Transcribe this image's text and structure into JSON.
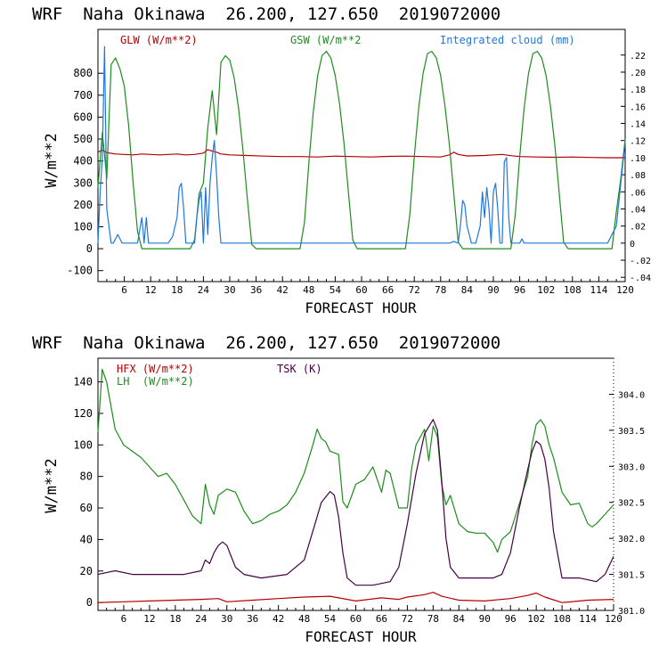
{
  "chart_data": [
    {
      "type": "line",
      "title": "WRF  Naha Okinawa  26.200, 127.650  2019072000",
      "xlabel": "FORECAST HOUR",
      "ylabel": "W/m**2",
      "xlim": [
        0,
        120
      ],
      "ylim": [
        -150,
        1000
      ],
      "y2lim": [
        -0.045,
        0.25
      ],
      "x_ticks": [
        6,
        12,
        18,
        24,
        30,
        36,
        42,
        48,
        54,
        60,
        66,
        72,
        78,
        84,
        90,
        96,
        102,
        108,
        114,
        120
      ],
      "y_ticks": [
        -100,
        0,
        100,
        200,
        300,
        400,
        500,
        600,
        700,
        800
      ],
      "y2_ticks": [
        -0.04,
        -0.02,
        0,
        0.02,
        0.04,
        0.06,
        0.08,
        0.1,
        0.12,
        0.14,
        0.16,
        0.18,
        0.2,
        0.22
      ],
      "y2_tick_labels": [
        "-.04",
        "-.02",
        "0",
        ".02",
        ".04",
        ".06",
        ".08",
        ".10",
        ".12",
        ".14",
        ".16",
        ".18",
        ".20",
        ".22"
      ],
      "grid": false,
      "series": [
        {
          "name": "GLW (W/m**2)",
          "axis": "left",
          "color": "#b40000",
          "x": [
            0,
            1,
            2,
            4,
            6,
            8,
            10,
            12,
            14,
            16,
            18,
            20,
            22,
            24,
            25,
            26,
            27,
            28,
            30,
            34,
            38,
            42,
            46,
            50,
            54,
            58,
            62,
            66,
            70,
            74,
            78,
            80,
            81,
            82,
            84,
            88,
            90,
            92,
            94,
            96,
            100,
            104,
            108,
            112,
            116,
            120
          ],
          "y": [
            440,
            450,
            438,
            432,
            430,
            428,
            432,
            430,
            428,
            430,
            432,
            428,
            430,
            436,
            452,
            445,
            440,
            432,
            428,
            425,
            422,
            420,
            420,
            418,
            422,
            420,
            418,
            421,
            422,
            420,
            418,
            428,
            440,
            430,
            423,
            425,
            428,
            430,
            424,
            420,
            418,
            417,
            418,
            416,
            415,
            415
          ]
        },
        {
          "name": "GSW (W/m**2",
          "axis": "left",
          "color": "#1e8c1e",
          "x": [
            0,
            1,
            2,
            3,
            4,
            5,
            6,
            7,
            8,
            9,
            10,
            11,
            12,
            13,
            14,
            15,
            16,
            17,
            18,
            19,
            20,
            21,
            22,
            23,
            24,
            25,
            26,
            27,
            28,
            29,
            30,
            31,
            32,
            33,
            34,
            35,
            36,
            37,
            38,
            39,
            40,
            41,
            42,
            43,
            44,
            45,
            46,
            47,
            48,
            49,
            50,
            51,
            52,
            53,
            54,
            55,
            56,
            57,
            58,
            59,
            60,
            61,
            62,
            63,
            64,
            65,
            66,
            67,
            68,
            69,
            70,
            71,
            72,
            73,
            74,
            75,
            76,
            77,
            78,
            79,
            80,
            81,
            82,
            83,
            84,
            85,
            86,
            87,
            88,
            89,
            90,
            91,
            92,
            93,
            94,
            95,
            96,
            97,
            98,
            99,
            100,
            101,
            102,
            103,
            104,
            105,
            106,
            107,
            108,
            109,
            110,
            111,
            112,
            113,
            114,
            115,
            116,
            117,
            118,
            119,
            120
          ],
          "y": [
            280,
            530,
            320,
            840,
            870,
            820,
            740,
            560,
            300,
            80,
            0,
            0,
            0,
            0,
            0,
            0,
            0,
            0,
            0,
            0,
            0,
            0,
            40,
            250,
            300,
            550,
            720,
            520,
            850,
            880,
            860,
            780,
            640,
            450,
            230,
            20,
            0,
            0,
            0,
            0,
            0,
            0,
            0,
            0,
            0,
            0,
            0,
            120,
            390,
            620,
            790,
            880,
            900,
            870,
            790,
            660,
            480,
            260,
            40,
            0,
            0,
            0,
            0,
            0,
            0,
            0,
            0,
            0,
            0,
            0,
            0,
            160,
            420,
            640,
            800,
            890,
            900,
            870,
            790,
            650,
            470,
            250,
            30,
            0,
            0,
            0,
            0,
            0,
            0,
            0,
            0,
            0,
            0,
            0,
            0,
            160,
            420,
            640,
            800,
            890,
            900,
            870,
            790,
            650,
            470,
            250,
            30,
            0,
            0,
            0,
            0,
            0,
            0,
            0,
            0,
            0,
            0,
            0,
            170,
            320,
            500
          ]
        },
        {
          "name": "Integrated cloud (mm)",
          "axis": "right",
          "color": "#1e78dc",
          "x": [
            0,
            0.5,
            1,
            1.5,
            2,
            2.5,
            3,
            3.5,
            4,
            4.5,
            5,
            5.5,
            6,
            6.5,
            7,
            9,
            10,
            10.5,
            11,
            11.5,
            12,
            13,
            16,
            17,
            18,
            18.5,
            19,
            19.5,
            20,
            21,
            22,
            22.5,
            23,
            23.5,
            24,
            24.5,
            25,
            25.5,
            26,
            26.5,
            27,
            27.5,
            28,
            30,
            60,
            80,
            81,
            82,
            82.5,
            83,
            83.5,
            84,
            84.5,
            85,
            86,
            87,
            87.5,
            88,
            88.5,
            89,
            89.5,
            90,
            90.5,
            91,
            91.5,
            92,
            92.5,
            93,
            93.5,
            94,
            95,
            96,
            96.5,
            97,
            98,
            110,
            116,
            118,
            119,
            120
          ],
          "y": [
            0.0,
            0.06,
            0.1,
            0.23,
            0.04,
            0.02,
            0.0,
            0.0,
            0.005,
            0.01,
            0.005,
            0.0,
            0.0,
            0.0,
            0.0,
            0.0,
            0.03,
            0.0,
            0.03,
            0.0,
            0.0,
            0.0,
            0.0,
            0.008,
            0.03,
            0.065,
            0.07,
            0.04,
            0.0,
            0.0,
            0.0,
            0.03,
            0.05,
            0.06,
            0.0,
            0.065,
            0.01,
            0.07,
            0.1,
            0.12,
            0.08,
            0.03,
            0.0,
            0.0,
            0.0,
            0.0,
            0.002,
            0.0,
            0.02,
            0.05,
            0.045,
            0.02,
            0.01,
            0.0,
            0.0,
            0.02,
            0.06,
            0.03,
            0.065,
            0.04,
            0.0,
            0.06,
            0.07,
            0.04,
            0.0,
            0.0,
            0.095,
            0.1,
            0.03,
            0.0,
            0.0,
            0.0,
            0.005,
            0.0,
            0.0,
            0.0,
            0.0,
            0.02,
            0.07,
            0.12
          ]
        }
      ]
    },
    {
      "type": "line",
      "title": "WRF  Naha Okinawa  26.200, 127.650  2019072000",
      "xlabel": "FORECAST HOUR",
      "ylabel": "W/m**2",
      "xlim": [
        0,
        120
      ],
      "ylim": [
        -5,
        155
      ],
      "y2lim": [
        301.0,
        304.5
      ],
      "x_ticks": [
        6,
        12,
        18,
        24,
        30,
        36,
        42,
        48,
        54,
        60,
        66,
        72,
        78,
        84,
        90,
        96,
        102,
        108,
        114,
        120
      ],
      "y_ticks": [
        0,
        20,
        40,
        60,
        80,
        100,
        120,
        140
      ],
      "y2_ticks": [
        301.0,
        301.5,
        302.0,
        302.5,
        303.0,
        303.5,
        304.0
      ],
      "y2_tick_labels": [
        "301.0",
        "301.5",
        "302.0",
        "302.5",
        "303.0",
        "303.5",
        "304.0"
      ],
      "grid": false,
      "series": [
        {
          "name": "HFX (W/m**2)",
          "axis": "left",
          "color": "#b40000",
          "x": [
            0,
            6,
            12,
            18,
            24,
            28,
            30,
            36,
            42,
            48,
            54,
            56,
            60,
            66,
            70,
            72,
            76,
            78,
            80,
            84,
            90,
            96,
            100,
            102,
            104,
            108,
            114,
            120
          ],
          "y": [
            0,
            0.5,
            1,
            1.5,
            2,
            2.5,
            0.5,
            1.5,
            2.5,
            3.5,
            4,
            3,
            1,
            3,
            2,
            3.5,
            5,
            6.5,
            4,
            1.5,
            1,
            2.5,
            4.5,
            6,
            3.5,
            0,
            1.5,
            2
          ]
        },
        {
          "name": "LH  (W/m**2)",
          "axis": "left",
          "color": "#1e8c1e",
          "x": [
            0,
            1,
            2,
            3,
            4,
            6,
            8,
            10,
            12,
            14,
            16,
            18,
            20,
            22,
            24,
            25,
            26,
            27,
            28,
            30,
            32,
            34,
            36,
            38,
            40,
            42,
            44,
            46,
            48,
            50,
            51,
            52,
            53,
            54,
            56,
            57,
            58,
            60,
            62,
            64,
            66,
            67,
            68,
            70,
            72,
            73,
            74,
            76,
            77,
            78,
            79,
            80,
            81,
            82,
            84,
            86,
            88,
            90,
            92,
            93,
            94,
            96,
            98,
            100,
            101,
            102,
            103,
            104,
            105,
            106,
            108,
            110,
            112,
            114,
            115,
            116,
            118,
            120
          ],
          "y": [
            108,
            148,
            140,
            125,
            110,
            100,
            96,
            92,
            86,
            80,
            82,
            75,
            65,
            55,
            50,
            75,
            62,
            56,
            68,
            72,
            70,
            58,
            50,
            52,
            56,
            58,
            62,
            70,
            82,
            100,
            110,
            104,
            102,
            96,
            94,
            64,
            60,
            75,
            78,
            86,
            70,
            84,
            82,
            60,
            60,
            85,
            100,
            110,
            90,
            112,
            105,
            75,
            62,
            68,
            50,
            45,
            44,
            44,
            38,
            32,
            40,
            45,
            62,
            80,
            100,
            113,
            116,
            112,
            100,
            92,
            70,
            62,
            63,
            50,
            48,
            50,
            56,
            62
          ]
        },
        {
          "name": "TSK (K)",
          "axis": "right",
          "color": "#440044",
          "x": [
            0,
            4,
            8,
            12,
            16,
            20,
            24,
            25,
            26,
            27,
            28,
            29,
            30,
            31,
            32,
            34,
            38,
            44,
            48,
            50,
            52,
            54,
            55,
            56,
            57,
            58,
            60,
            64,
            68,
            70,
            72,
            74,
            76,
            77,
            78,
            79,
            80,
            81,
            82,
            84,
            88,
            92,
            94,
            96,
            98,
            100,
            101,
            102,
            103,
            104,
            105,
            106,
            108,
            112,
            116,
            118,
            120
          ],
          "y": [
            301.5,
            301.55,
            301.5,
            301.5,
            301.5,
            301.5,
            301.55,
            301.7,
            301.65,
            301.8,
            301.9,
            301.95,
            301.9,
            301.75,
            301.6,
            301.5,
            301.45,
            301.5,
            301.7,
            302.1,
            302.5,
            302.65,
            302.6,
            302.3,
            301.8,
            301.45,
            301.35,
            301.35,
            301.4,
            301.6,
            302.2,
            302.9,
            303.45,
            303.55,
            303.65,
            303.5,
            302.8,
            302.0,
            301.6,
            301.45,
            301.45,
            301.45,
            301.5,
            301.8,
            302.4,
            302.95,
            303.2,
            303.35,
            303.3,
            303.1,
            302.7,
            302.1,
            301.45,
            301.45,
            301.4,
            301.5,
            301.75
          ]
        }
      ]
    }
  ]
}
